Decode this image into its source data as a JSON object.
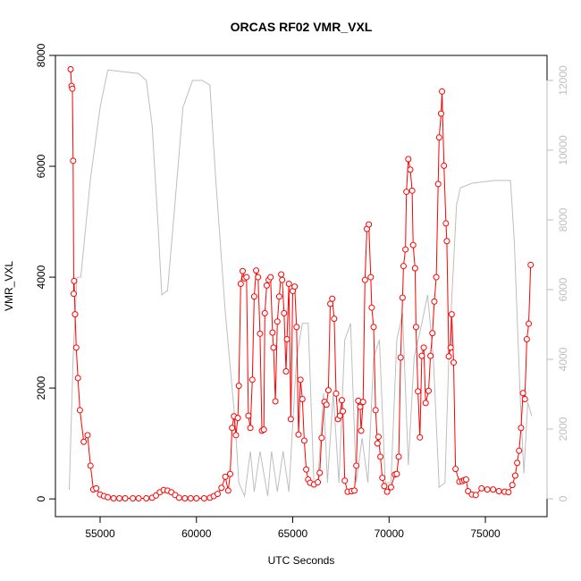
{
  "chart_data": {
    "type": "line",
    "title": "ORCAS RF02 VMR_VXL",
    "x_label": "UTC Seconds",
    "y_label": "VMR_VXL",
    "xlim": [
      52680,
      78200
    ],
    "xticks": [
      55000,
      60000,
      65000,
      70000,
      75000
    ],
    "ylim": [
      -320,
      8000
    ],
    "yticks": [
      0,
      2000,
      4000,
      6000,
      8000
    ],
    "y2lim": [
      -513,
      12718
    ],
    "y2ticks": [
      0,
      2000,
      4000,
      6000,
      8000,
      10000,
      12000
    ],
    "series": [
      {
        "name": "VMR_VXL",
        "color": "#ff0000",
        "markers": true,
        "x": [
          53470,
          53520,
          53560,
          53600,
          53630,
          53650,
          53700,
          53760,
          53850,
          53950,
          54150,
          54350,
          54500,
          54650,
          54800,
          55000,
          55200,
          55400,
          55700,
          56000,
          56300,
          56700,
          57000,
          57400,
          57700,
          57900,
          58100,
          58300,
          58500,
          58700,
          58900,
          59100,
          59400,
          59700,
          60000,
          60400,
          60700,
          60900,
          61100,
          61300,
          61500,
          61650,
          61750,
          61850,
          61950,
          62050,
          62150,
          62200,
          62300,
          62400,
          62500,
          62600,
          62700,
          62800,
          62900,
          63000,
          63100,
          63200,
          63300,
          63400,
          63500,
          63550,
          63650,
          63750,
          63850,
          63950,
          64000,
          64100,
          64200,
          64300,
          64400,
          64450,
          64550,
          64650,
          64700,
          64800,
          64900,
          65000,
          65100,
          65200,
          65300,
          65400,
          65500,
          65600,
          65700,
          65800,
          65900,
          66100,
          66300,
          66400,
          66500,
          66650,
          66750,
          66850,
          66950,
          67050,
          67150,
          67250,
          67350,
          67450,
          67550,
          67600,
          67700,
          67850,
          68050,
          68200,
          68300,
          68400,
          68500,
          68550,
          68650,
          68750,
          68850,
          68950,
          69050,
          69100,
          69200,
          69300,
          69400,
          69450,
          69550,
          69650,
          69750,
          69900,
          70100,
          70300,
          70400,
          70500,
          70600,
          70700,
          70750,
          70850,
          70900,
          71000,
          71100,
          71200,
          71250,
          71350,
          71400,
          71500,
          71600,
          71700,
          71800,
          71900,
          72050,
          72150,
          72250,
          72350,
          72450,
          72550,
          72600,
          72700,
          72750,
          72850,
          72950,
          73000,
          73100,
          73200,
          73250,
          73350,
          73450,
          73650,
          73800,
          73900,
          74000,
          74100,
          74300,
          74500,
          74800,
          75100,
          75400,
          75700,
          76000,
          76200,
          76400,
          76550,
          76650,
          76750,
          76850,
          76950,
          77050,
          77150,
          77250,
          77350
        ],
        "values": [
          7750,
          7450,
          7400,
          6100,
          3700,
          3930,
          3330,
          2730,
          2180,
          1600,
          1030,
          1150,
          600,
          170,
          190,
          80,
          50,
          30,
          10,
          10,
          10,
          10,
          10,
          10,
          20,
          60,
          120,
          160,
          150,
          120,
          70,
          20,
          10,
          10,
          10,
          10,
          20,
          50,
          90,
          200,
          400,
          150,
          450,
          1280,
          1490,
          1150,
          1460,
          2040,
          3880,
          4110,
          3980,
          4000,
          1500,
          1280,
          2150,
          3650,
          4120,
          4000,
          2980,
          1230,
          1250,
          3350,
          3850,
          3950,
          4000,
          3000,
          2730,
          1760,
          3200,
          3650,
          4050,
          3950,
          3350,
          2300,
          2880,
          3880,
          1440,
          3750,
          3830,
          3100,
          1160,
          2150,
          1800,
          1050,
          530,
          350,
          290,
          260,
          300,
          470,
          1100,
          1750,
          1700,
          1960,
          3520,
          3610,
          3250,
          1900,
          1440,
          1500,
          1780,
          1580,
          330,
          130,
          140,
          150,
          600,
          1770,
          1660,
          1230,
          1750,
          3950,
          4870,
          4950,
          4000,
          3450,
          3100,
          1600,
          1000,
          1120,
          760,
          380,
          230,
          130,
          210,
          440,
          450,
          760,
          2550,
          3630,
          4200,
          4500,
          5540,
          6130,
          5940,
          5560,
          4580,
          4160,
          3100,
          1940,
          1110,
          2580,
          2730,
          1730,
          1950,
          2580,
          2990,
          3560,
          4000,
          5680,
          6520,
          6950,
          7350,
          6010,
          4970,
          4650,
          2570,
          2730,
          3330,
          2460,
          540,
          310,
          320,
          340,
          350,
          140,
          80,
          70,
          190,
          170,
          170,
          140,
          130,
          120,
          250,
          420,
          650,
          870,
          1280,
          1910,
          1800,
          2880,
          3160,
          4220
        ]
      },
      {
        "name": "",
        "color": "#bebebe",
        "axis": "y2",
        "x": [
          53400,
          53600,
          53800,
          54000,
          54500,
          55000,
          55400,
          57000,
          57400,
          57700,
          58000,
          58200,
          58500,
          58800,
          59300,
          59800,
          60300,
          60700,
          61000,
          61500,
          62000,
          62200,
          62500,
          62800,
          63000,
          63300,
          63700,
          63900,
          64200,
          64500,
          64800,
          65200,
          65500,
          65800,
          66100,
          66300,
          66600,
          66800,
          67100,
          67400,
          67700,
          68000,
          68300,
          68600,
          68900,
          69200,
          69500,
          69800,
          70100,
          70400,
          70700,
          71000,
          71300,
          71700,
          72000,
          72300,
          72600,
          72900,
          73100,
          73500,
          73700,
          74300,
          75500,
          76300,
          76500,
          76800,
          77000,
          77200,
          77400
        ],
        "values": [
          250,
          4050,
          6350,
          6360,
          9180,
          11230,
          12300,
          12200,
          12000,
          10700,
          7900,
          5850,
          5970,
          7900,
          11230,
          12000,
          12000,
          11870,
          9180,
          5330,
          2260,
          460,
          80,
          1360,
          200,
          1360,
          80,
          1360,
          200,
          1360,
          200,
          4050,
          5030,
          5030,
          460,
          460,
          3030,
          460,
          3030,
          460,
          4560,
          5030,
          460,
          1740,
          460,
          4050,
          4560,
          460,
          460,
          4560,
          5330,
          970,
          4050,
          5030,
          5850,
          4050,
          330,
          460,
          4050,
          8410,
          8920,
          9050,
          9130,
          9130,
          7380,
          3030,
          720,
          2770,
          2380
        ]
      }
    ]
  }
}
